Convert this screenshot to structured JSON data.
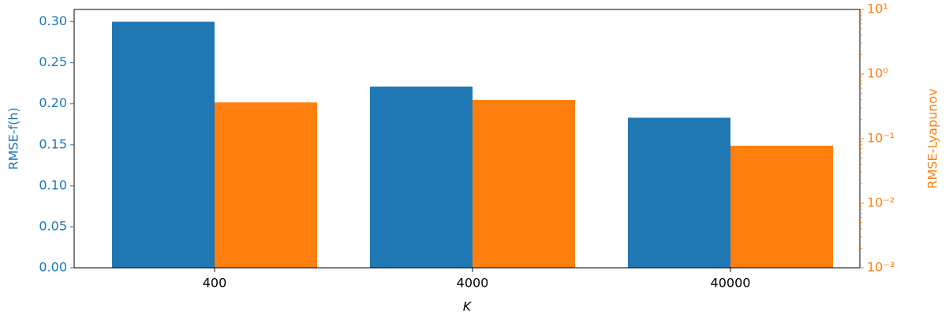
{
  "chart_data": {
    "type": "bar",
    "categories": [
      "400",
      "4000",
      "40000"
    ],
    "xlabel": "K",
    "ylabel": "RMSE-f(h)",
    "y2label": "RMSE-Lyapunov",
    "ylim": [
      0,
      0.315
    ],
    "yticks": [
      {
        "value": 0,
        "label": "0.00"
      },
      {
        "value": 0.05,
        "label": "0.05"
      },
      {
        "value": 0.1,
        "label": "0.10"
      },
      {
        "value": 0.15,
        "label": "0.15"
      },
      {
        "value": 0.2,
        "label": "0.20"
      },
      {
        "value": 0.25,
        "label": "0.25"
      },
      {
        "value": 0.3,
        "label": "0.30"
      }
    ],
    "y2lim": [
      0.001,
      10
    ],
    "y2scale": "log",
    "y2ticks": [
      {
        "value": 0.001,
        "label": "10⁻³"
      },
      {
        "value": 0.01,
        "label": "10⁻²"
      },
      {
        "value": 0.1,
        "label": "10⁻¹"
      },
      {
        "value": 1,
        "label": "10⁰"
      },
      {
        "value": 10,
        "label": "10¹"
      }
    ],
    "series": [
      {
        "name": "RMSE-f(h)",
        "color": "#1f77b4",
        "values": [
          0.3,
          0.221,
          0.183
        ]
      },
      {
        "name": "RMSE-Lyapunov",
        "color": "#ff7f0e",
        "axis": "y2",
        "values": [
          0.364,
          0.397,
          0.0776
        ]
      }
    ]
  }
}
